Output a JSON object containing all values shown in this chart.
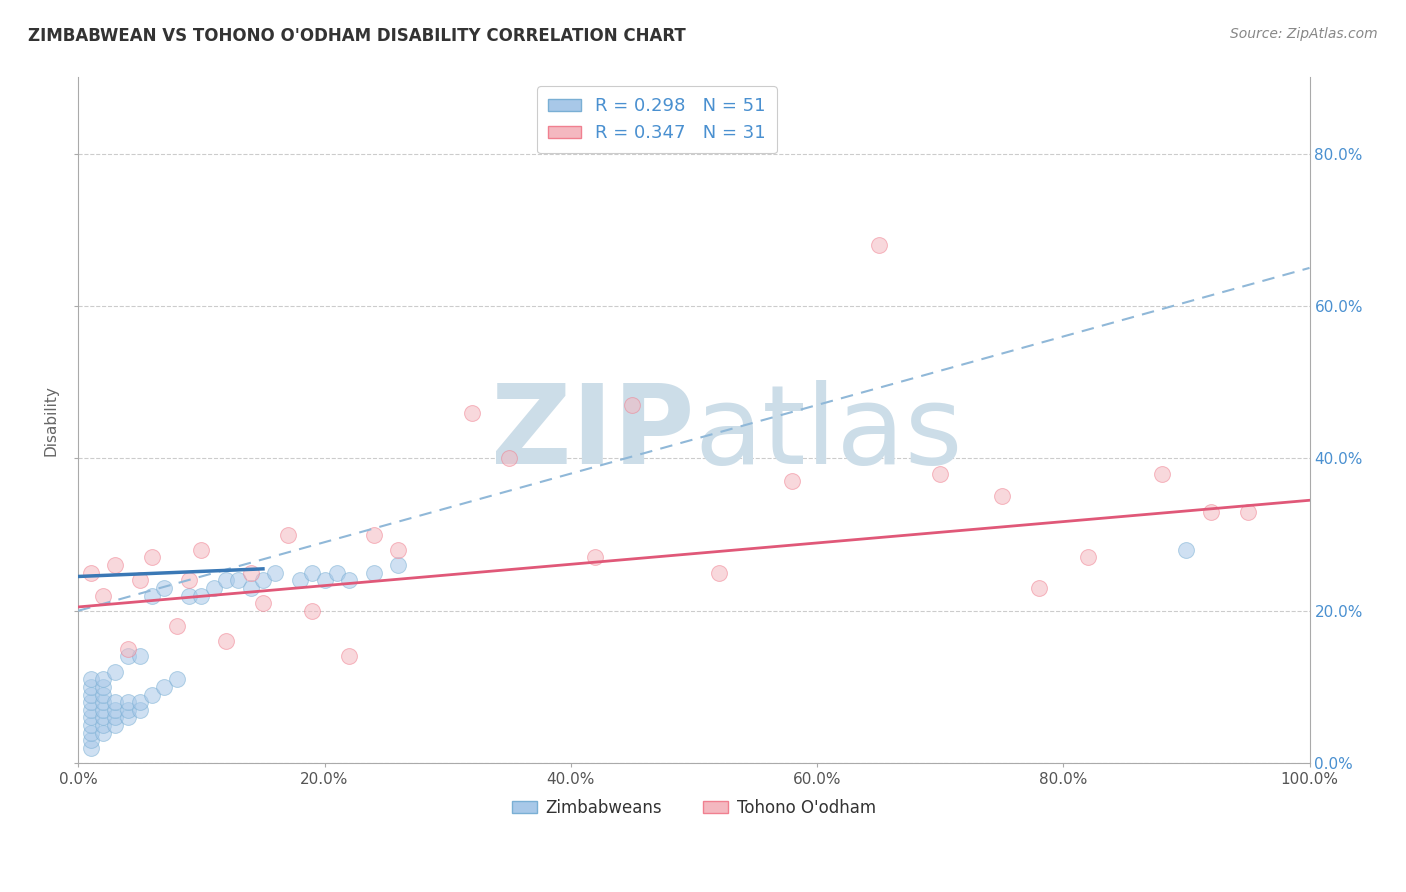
{
  "title": "ZIMBABWEAN VS TOHONO O'ODHAM DISABILITY CORRELATION CHART",
  "source": "Source: ZipAtlas.com",
  "ylabel": "Disability",
  "xlabel": "",
  "legend_blue_label": "Zimbabweans",
  "legend_pink_label": "Tohono O'odham",
  "R_blue": 0.298,
  "N_blue": 51,
  "R_pink": 0.347,
  "N_pink": 31,
  "blue_scatter_color": "#a8c8e8",
  "blue_scatter_edge": "#7aafd4",
  "pink_scatter_color": "#f4b8c0",
  "pink_scatter_edge": "#f08090",
  "blue_line_color": "#3a78b5",
  "blue_dashed_color": "#90b8d8",
  "pink_line_color": "#e05878",
  "watermark_color": "#ccdde8",
  "grid_color": "#cccccc",
  "title_color": "#333333",
  "axis_label_color": "#666666",
  "right_tick_color": "#4a90d0",
  "legend_text_color": "#4a90d0",
  "xlim": [
    0.0,
    1.0
  ],
  "ylim": [
    0.0,
    0.9
  ],
  "x_ticks": [
    0.0,
    0.2,
    0.4,
    0.6,
    0.8,
    1.0
  ],
  "x_tick_labels": [
    "0.0%",
    "20.0%",
    "40.0%",
    "60.0%",
    "80.0%",
    "100.0%"
  ],
  "y_ticks": [
    0.0,
    0.2,
    0.4,
    0.6,
    0.8
  ],
  "y_tick_labels": [
    "0.0%",
    "20.0%",
    "40.0%",
    "60.0%",
    "80.0%"
  ],
  "blue_scatter_x": [
    0.01,
    0.01,
    0.01,
    0.01,
    0.01,
    0.01,
    0.01,
    0.01,
    0.01,
    0.01,
    0.02,
    0.02,
    0.02,
    0.02,
    0.02,
    0.02,
    0.02,
    0.02,
    0.03,
    0.03,
    0.03,
    0.03,
    0.03,
    0.04,
    0.04,
    0.04,
    0.04,
    0.05,
    0.05,
    0.05,
    0.06,
    0.06,
    0.07,
    0.07,
    0.08,
    0.09,
    0.1,
    0.11,
    0.12,
    0.13,
    0.14,
    0.15,
    0.16,
    0.18,
    0.19,
    0.2,
    0.21,
    0.22,
    0.24,
    0.26,
    0.9
  ],
  "blue_scatter_y": [
    0.02,
    0.03,
    0.04,
    0.05,
    0.06,
    0.07,
    0.08,
    0.09,
    0.1,
    0.11,
    0.04,
    0.05,
    0.06,
    0.07,
    0.08,
    0.09,
    0.1,
    0.11,
    0.05,
    0.06,
    0.07,
    0.08,
    0.12,
    0.06,
    0.07,
    0.08,
    0.14,
    0.07,
    0.08,
    0.14,
    0.09,
    0.22,
    0.1,
    0.23,
    0.11,
    0.22,
    0.22,
    0.23,
    0.24,
    0.24,
    0.23,
    0.24,
    0.25,
    0.24,
    0.25,
    0.24,
    0.25,
    0.24,
    0.25,
    0.26,
    0.28
  ],
  "pink_scatter_x": [
    0.01,
    0.02,
    0.03,
    0.04,
    0.05,
    0.06,
    0.08,
    0.09,
    0.1,
    0.12,
    0.14,
    0.15,
    0.17,
    0.19,
    0.22,
    0.24,
    0.26,
    0.32,
    0.35,
    0.42,
    0.45,
    0.52,
    0.58,
    0.65,
    0.7,
    0.75,
    0.78,
    0.82,
    0.88,
    0.92,
    0.95
  ],
  "pink_scatter_y": [
    0.25,
    0.22,
    0.26,
    0.15,
    0.24,
    0.27,
    0.18,
    0.24,
    0.28,
    0.16,
    0.25,
    0.21,
    0.3,
    0.2,
    0.14,
    0.3,
    0.28,
    0.46,
    0.4,
    0.27,
    0.47,
    0.25,
    0.37,
    0.68,
    0.38,
    0.35,
    0.23,
    0.27,
    0.38,
    0.33,
    0.33
  ],
  "blue_solid_trend_x": [
    0.0,
    0.15
  ],
  "blue_solid_trend_y": [
    0.245,
    0.255
  ],
  "blue_dashed_trend_x": [
    0.0,
    1.0
  ],
  "blue_dashed_trend_y": [
    0.2,
    0.65
  ],
  "pink_trend_x": [
    0.0,
    1.0
  ],
  "pink_trend_y": [
    0.205,
    0.345
  ],
  "marker_size": 130,
  "marker_alpha": 0.55
}
